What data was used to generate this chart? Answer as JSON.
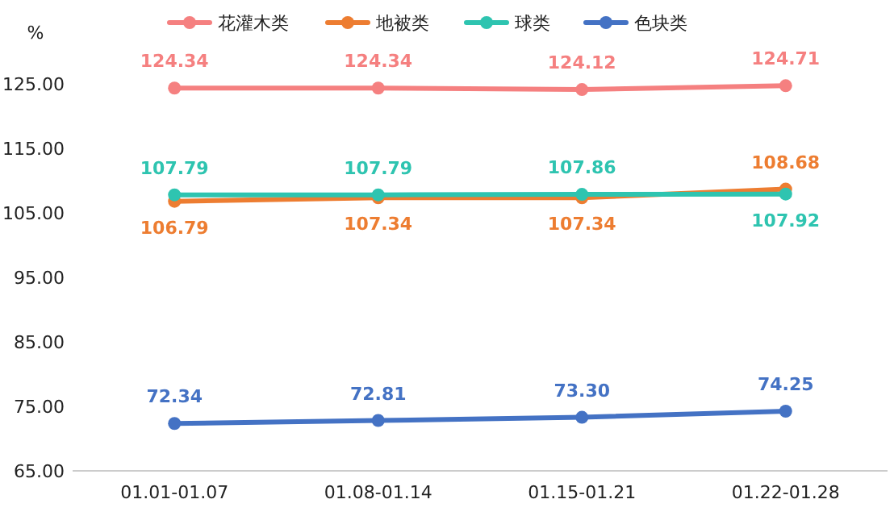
{
  "chart_data": {
    "type": "line",
    "ylabel": "%",
    "categories": [
      "01.01-01.07",
      "01.08-01.14",
      "01.15-01.21",
      "01.22-01.28"
    ],
    "series": [
      {
        "name": "花灌木类",
        "color": "#f58080",
        "values": [
          124.34,
          124.34,
          124.12,
          124.71
        ],
        "value_labels": [
          "124.34",
          "124.34",
          "124.12",
          "124.71"
        ]
      },
      {
        "name": "地被类",
        "color": "#ed7d31",
        "values": [
          106.79,
          107.34,
          107.34,
          108.68
        ],
        "value_labels": [
          "106.79",
          "107.34",
          "107.34",
          "108.68"
        ]
      },
      {
        "name": "球类",
        "color": "#2ec4b0",
        "values": [
          107.79,
          107.79,
          107.86,
          107.92
        ],
        "value_labels": [
          "107.79",
          "107.79",
          "107.86",
          "107.92"
        ]
      },
      {
        "name": "色块类",
        "color": "#4472c4",
        "values": [
          72.34,
          72.81,
          73.3,
          74.25
        ],
        "value_labels": [
          "72.34",
          "72.81",
          "73.30",
          "74.25"
        ]
      }
    ],
    "ylim": [
      65,
      125
    ],
    "yticks": [
      {
        "value": 65,
        "label": "65.00"
      },
      {
        "value": 75,
        "label": "75.00"
      },
      {
        "value": 85,
        "label": "85.00"
      },
      {
        "value": 95,
        "label": "95.00"
      },
      {
        "value": 105,
        "label": "105.00"
      },
      {
        "value": 115,
        "label": "115.00"
      },
      {
        "value": 125,
        "label": "125.00"
      }
    ],
    "grid": false,
    "legend": "top",
    "marker": "circle",
    "line_style": "solid"
  }
}
